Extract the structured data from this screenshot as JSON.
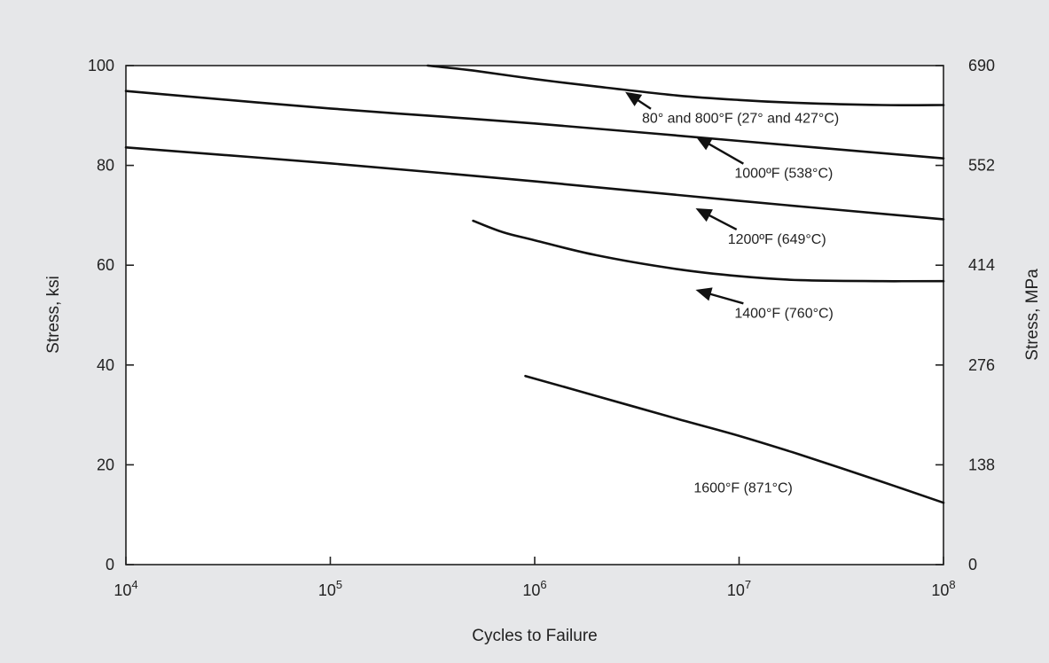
{
  "chart_data": {
    "type": "line",
    "xlabel": "Cycles to Failure",
    "ylabel": "Stress, ksi",
    "ylabel_right": "Stress, MPa",
    "x_scale": "log",
    "xlim": [
      10000,
      100000000
    ],
    "ylim": [
      0,
      100
    ],
    "x_ticks": [
      {
        "value": 10000,
        "base": "10",
        "exp": "4"
      },
      {
        "value": 100000,
        "base": "10",
        "exp": "5"
      },
      {
        "value": 1000000,
        "base": "10",
        "exp": "6"
      },
      {
        "value": 10000000,
        "base": "10",
        "exp": "7"
      },
      {
        "value": 100000000,
        "base": "10",
        "exp": "8"
      }
    ],
    "y_ticks_left": [
      {
        "value": 0,
        "label": "0"
      },
      {
        "value": 20,
        "label": "20"
      },
      {
        "value": 40,
        "label": "40"
      },
      {
        "value": 60,
        "label": "60"
      },
      {
        "value": 80,
        "label": "80"
      },
      {
        "value": 100,
        "label": "100"
      }
    ],
    "y_ticks_right": [
      {
        "value": 0,
        "label": "0"
      },
      {
        "value": 20,
        "label": "138"
      },
      {
        "value": 40,
        "label": "276"
      },
      {
        "value": 60,
        "label": "414"
      },
      {
        "value": 80,
        "label": "552"
      },
      {
        "value": 100,
        "label": "690"
      }
    ],
    "grid": false,
    "series": [
      {
        "name": "80° and 800°F (27° and 427°C)",
        "x": [
          300000,
          500000,
          1000000,
          2000000,
          5000000,
          10000000,
          20000000,
          50000000,
          100000000
        ],
        "y": [
          100,
          99,
          97.3,
          95.8,
          94.0,
          93.1,
          92.5,
          92.1,
          92.1
        ]
      },
      {
        "name": "1000ºF (538°C)",
        "x": [
          10000,
          100000,
          1000000,
          10000000,
          100000000
        ],
        "y": [
          94.9,
          91.4,
          88.4,
          84.9,
          81.4
        ]
      },
      {
        "name": "1200ºF (649°C)",
        "x": [
          10000,
          100000,
          1000000,
          10000000,
          100000000
        ],
        "y": [
          83.6,
          80.4,
          76.8,
          72.9,
          69.2
        ]
      },
      {
        "name": "1400°F (760°C)",
        "x": [
          500000,
          700000,
          1000000,
          2000000,
          5000000,
          10000000,
          20000000,
          50000000,
          100000000
        ],
        "y": [
          68.9,
          66.6,
          65.0,
          62.0,
          59.2,
          57.8,
          57.0,
          56.8,
          56.8
        ]
      },
      {
        "name": "1600°F (871°C)",
        "x": [
          900000,
          2000000,
          5000000,
          10000000,
          20000000,
          50000000,
          100000000
        ],
        "y": [
          37.8,
          33.8,
          29.2,
          25.8,
          22.0,
          16.6,
          12.4
        ]
      }
    ],
    "annotations": [
      {
        "series": 0,
        "text": "80° and 800°F (27° and 427°C)",
        "arrow_tip": [
          2800000,
          94.6
        ],
        "label_at": [
          3350000,
          88.5
        ]
      },
      {
        "series": 1,
        "text": "1000ºF (538°C)",
        "arrow_tip": [
          6200000,
          85.7
        ],
        "label_at": [
          9500000,
          77.5
        ]
      },
      {
        "series": 2,
        "text": "1200ºF (649°C)",
        "arrow_tip": [
          6200000,
          71.3
        ],
        "label_at": [
          8800000,
          64.3
        ]
      },
      {
        "series": 3,
        "text": "1400°F (760°C)",
        "arrow_tip": [
          6200000,
          55.0
        ],
        "label_at": [
          9500000,
          49.5
        ]
      },
      {
        "series": 4,
        "text": "1600°F (871°C)",
        "arrow_tip": null,
        "label_at": [
          6000000,
          14.5
        ]
      }
    ]
  }
}
